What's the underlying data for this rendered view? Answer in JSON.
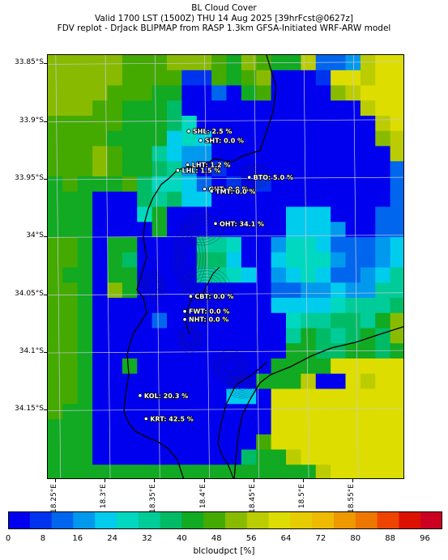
{
  "header": {
    "line1": "BL Cloud Cover",
    "line2": "Valid 1700 LST (1500Z) THU 14 Aug 2025 [39hrFcst@0627z]",
    "line3": "FDV replot - DrJack BLIPMAP from RASP 1.3km GFSA-Initiated WRF-ARW model"
  },
  "axes": {
    "lat_ticks": [
      "33.85°S",
      "33.9°S",
      "33.95°S",
      "34°S",
      "34.05°S",
      "34.1°S",
      "34.15°S"
    ],
    "lon_ticks": [
      "18.25°E",
      "18.3°E",
      "18.35°E",
      "18.4°E",
      "18.45°E",
      "18.5°E",
      "18.55°E"
    ]
  },
  "stations": [
    {
      "name": "SHL",
      "text": "SHL: 2.5 %",
      "lon": 18.384,
      "lat": -33.908
    },
    {
      "name": "SHT",
      "text": "SHT: 0.0 %",
      "lon": 18.396,
      "lat": -33.916
    },
    {
      "name": "LHT",
      "text": "LHT: 1.2 %",
      "lon": 18.383,
      "lat": -33.937
    },
    {
      "name": "LHL",
      "text": "LHL: 1.5 %",
      "lon": 18.373,
      "lat": -33.942
    },
    {
      "name": "BTO",
      "text": "BTO: 5.0 %",
      "lon": 18.445,
      "lat": -33.948
    },
    {
      "name": "GUT",
      "text": "GUT: 0.0 %",
      "lon": 18.4,
      "lat": -33.958
    },
    {
      "name": "TMT",
      "text": "TMT: 0.0 %",
      "lon": 18.407,
      "lat": -33.96
    },
    {
      "name": "OHT",
      "text": "OHT: 34.1 %",
      "lon": 18.411,
      "lat": -33.988
    },
    {
      "name": "CBT",
      "text": "CBT: 0.0 %",
      "lon": 18.386,
      "lat": -34.051
    },
    {
      "name": "FWT",
      "text": "FWT: 0.0 %",
      "lon": 18.38,
      "lat": -34.064
    },
    {
      "name": "NHT",
      "text": "NHT: 0.0 %",
      "lon": 18.38,
      "lat": -34.071
    },
    {
      "name": "KOL",
      "text": "KOL: 20.3 %",
      "lon": 18.335,
      "lat": -34.137
    },
    {
      "name": "KRT",
      "text": "KRT: 42.5 %",
      "lon": 18.341,
      "lat": -34.157
    }
  ],
  "colorbar": {
    "label": "blcloudpct [%]",
    "ticks": [
      "0",
      "8",
      "16",
      "24",
      "32",
      "40",
      "48",
      "56",
      "64",
      "72",
      "80",
      "88",
      "96"
    ],
    "colors": [
      "#0000ee",
      "#0033ee",
      "#0066ee",
      "#0099ee",
      "#00cced",
      "#00d8c0",
      "#00cc99",
      "#00bb66",
      "#11aa22",
      "#44aa00",
      "#88bb00",
      "#bbcc00",
      "#dddd00",
      "#e6cc00",
      "#eebb00",
      "#ee9900",
      "#ee7700",
      "#ee4400",
      "#dd1100",
      "#cc0022"
    ]
  },
  "map_extent": {
    "lon_min": 18.242,
    "lon_max": 18.602,
    "lat_min": -34.21,
    "lat_max": -33.842
  },
  "grid": {
    "cols": 24,
    "rows": 28,
    "values": [
      [
        52,
        52,
        54,
        52,
        50,
        48,
        46,
        48,
        50,
        52,
        50,
        46,
        44,
        52,
        46,
        44,
        40,
        56,
        14,
        12,
        16,
        56,
        60,
        60
      ],
      [
        52,
        52,
        54,
        52,
        50,
        48,
        46,
        48,
        46,
        6,
        6,
        46,
        44,
        46,
        52,
        4,
        2,
        2,
        6,
        60,
        60,
        56,
        60,
        60
      ],
      [
        52,
        50,
        52,
        50,
        48,
        46,
        46,
        44,
        44,
        2,
        2,
        10,
        2,
        44,
        46,
        4,
        2,
        2,
        2,
        52,
        56,
        60,
        60,
        60
      ],
      [
        50,
        52,
        50,
        48,
        46,
        44,
        44,
        42,
        36,
        2,
        2,
        2,
        2,
        2,
        4,
        2,
        2,
        2,
        2,
        2,
        2,
        56,
        60,
        60
      ],
      [
        48,
        48,
        48,
        46,
        46,
        44,
        44,
        44,
        38,
        26,
        2,
        2,
        2,
        2,
        2,
        2,
        2,
        2,
        2,
        2,
        2,
        2,
        56,
        60
      ],
      [
        46,
        48,
        46,
        46,
        44,
        44,
        42,
        40,
        20,
        26,
        20,
        4,
        2,
        2,
        2,
        2,
        2,
        2,
        2,
        2,
        2,
        2,
        52,
        56
      ],
      [
        46,
        48,
        46,
        52,
        46,
        44,
        40,
        34,
        22,
        16,
        16,
        4,
        2,
        2,
        2,
        2,
        2,
        2,
        2,
        2,
        2,
        2,
        2,
        56
      ],
      [
        46,
        48,
        46,
        52,
        46,
        44,
        42,
        38,
        30,
        16,
        4,
        6,
        2,
        2,
        2,
        2,
        2,
        2,
        2,
        2,
        2,
        2,
        2,
        10
      ],
      [
        44,
        46,
        44,
        44,
        44,
        46,
        38,
        26,
        26,
        20,
        10,
        4,
        6,
        4,
        6,
        2,
        2,
        2,
        2,
        2,
        2,
        2,
        2,
        10
      ],
      [
        44,
        42,
        44,
        2,
        2,
        2,
        38,
        30,
        36,
        20,
        20,
        4,
        2,
        2,
        2,
        2,
        2,
        2,
        2,
        2,
        2,
        2,
        2,
        10
      ],
      [
        44,
        42,
        44,
        2,
        2,
        2,
        26,
        42,
        2,
        2,
        2,
        2,
        2,
        2,
        2,
        2,
        22,
        22,
        22,
        2,
        2,
        2,
        10,
        12
      ],
      [
        44,
        42,
        44,
        2,
        2,
        2,
        2,
        42,
        2,
        2,
        2,
        2,
        2,
        2,
        2,
        2,
        20,
        22,
        22,
        16,
        2,
        2,
        10,
        12
      ],
      [
        48,
        46,
        44,
        2,
        44,
        42,
        2,
        2,
        2,
        2,
        32,
        34,
        26,
        2,
        2,
        16,
        26,
        28,
        20,
        12,
        10,
        10,
        16,
        20
      ],
      [
        48,
        46,
        44,
        2,
        44,
        38,
        2,
        2,
        2,
        2,
        38,
        36,
        22,
        2,
        2,
        20,
        28,
        28,
        28,
        16,
        10,
        12,
        18,
        20
      ],
      [
        48,
        44,
        44,
        2,
        44,
        42,
        2,
        2,
        2,
        2,
        34,
        34,
        28,
        20,
        2,
        16,
        22,
        26,
        24,
        10,
        12,
        16,
        22,
        30
      ],
      [
        48,
        46,
        44,
        2,
        52,
        42,
        2,
        2,
        2,
        2,
        2,
        2,
        2,
        2,
        2,
        10,
        14,
        16,
        16,
        20,
        18,
        18,
        30,
        32
      ],
      [
        48,
        46,
        44,
        2,
        2,
        4,
        2,
        2,
        2,
        2,
        2,
        2,
        2,
        2,
        2,
        20,
        22,
        24,
        22,
        26,
        30,
        32,
        34,
        36
      ],
      [
        48,
        46,
        44,
        2,
        2,
        2,
        2,
        12,
        2,
        2,
        2,
        2,
        2,
        2,
        2,
        2,
        28,
        32,
        34,
        38,
        36,
        34,
        40,
        54
      ],
      [
        48,
        46,
        44,
        2,
        2,
        2,
        2,
        2,
        2,
        2,
        2,
        2,
        2,
        2,
        2,
        2,
        30,
        40,
        38,
        34,
        38,
        40,
        38,
        54
      ],
      [
        48,
        46,
        44,
        2,
        2,
        2,
        2,
        2,
        2,
        2,
        2,
        2,
        2,
        2,
        2,
        2,
        40,
        40,
        38,
        36,
        42,
        40,
        38,
        42
      ],
      [
        48,
        46,
        44,
        2,
        2,
        40,
        2,
        2,
        2,
        2,
        2,
        2,
        2,
        2,
        2,
        40,
        44,
        40,
        40,
        60,
        60,
        60,
        62,
        60
      ],
      [
        48,
        46,
        44,
        2,
        2,
        2,
        2,
        2,
        2,
        2,
        2,
        2,
        2,
        2,
        40,
        40,
        40,
        58,
        2,
        2,
        60,
        58,
        60,
        62
      ],
      [
        48,
        46,
        44,
        2,
        2,
        2,
        2,
        2,
        2,
        2,
        2,
        2,
        24,
        22,
        2,
        62,
        62,
        62,
        62,
        60,
        60,
        60,
        62,
        60
      ],
      [
        48,
        44,
        44,
        2,
        2,
        2,
        2,
        2,
        2,
        2,
        2,
        2,
        2,
        2,
        2,
        62,
        62,
        62,
        62,
        62,
        62,
        62,
        62,
        62
      ],
      [
        44,
        44,
        44,
        2,
        2,
        2,
        2,
        2,
        2,
        2,
        2,
        2,
        2,
        2,
        2,
        62,
        62,
        62,
        62,
        62,
        62,
        62,
        62,
        62
      ],
      [
        44,
        44,
        44,
        2,
        2,
        2,
        2,
        2,
        2,
        2,
        2,
        2,
        2,
        2,
        46,
        62,
        62,
        62,
        62,
        62,
        62,
        62,
        62,
        62
      ],
      [
        44,
        44,
        44,
        2,
        2,
        2,
        2,
        2,
        2,
        2,
        2,
        2,
        2,
        38,
        40,
        40,
        56,
        62,
        62,
        62,
        62,
        62,
        62,
        62
      ],
      [
        42,
        42,
        44,
        44,
        44,
        44,
        44,
        44,
        44,
        44,
        44,
        44,
        44,
        44,
        44,
        44,
        40,
        40,
        56,
        62,
        62,
        62,
        62,
        62
      ]
    ]
  }
}
